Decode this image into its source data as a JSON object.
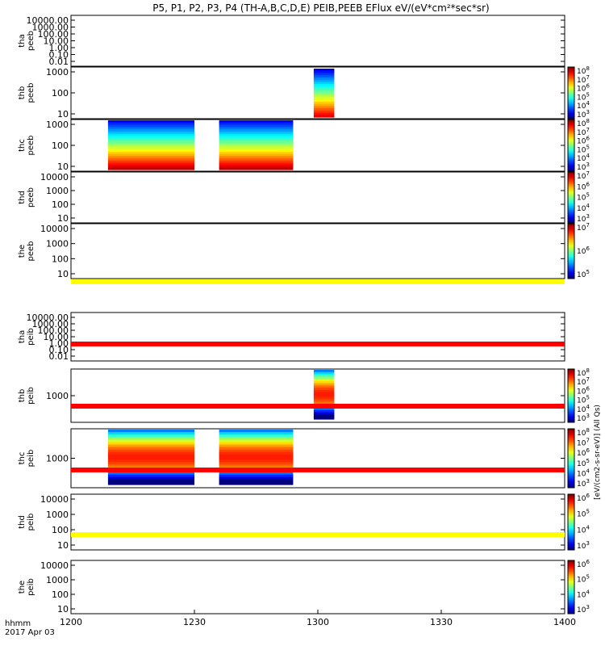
{
  "title": "P5, P1, P2, P3, P4 (TH-A,B,C,D,E) PEIB,PEEB EFlux eV/(eV*cm²*sec*sr)",
  "footer": {
    "line1": "hhmm",
    "line2": "2017 Apr 03"
  },
  "x_ticks": [
    "1200",
    "1230",
    "1300",
    "1330",
    "1400"
  ],
  "side_label": "[eV/(cm2-s-sr-eV)] (All Qs)",
  "colors": {
    "axis": "#000000",
    "marker_yellow": "#ffff00",
    "marker_red": "#ff0000"
  },
  "chart_data": {
    "type": "heatmap",
    "x_range": [
      "12:00",
      "14:00"
    ],
    "x_unit": "hhmm",
    "date": "2017 Apr 03",
    "colormap": "rainbow",
    "panels": [
      {
        "probe": "tha",
        "instrument": "peeb",
        "y_ticks": [
          "10000.00",
          "1000.00",
          "100.00",
          "10.00",
          "1.00",
          "0.10",
          "0.01"
        ],
        "colorbar": false,
        "data_blocks": []
      },
      {
        "probe": "thb",
        "instrument": "peeb",
        "y_ticks": [
          "1000",
          "100",
          "10"
        ],
        "colorbar": true,
        "cbar_ticks": [
          "10^8",
          "10^7",
          "10^6",
          "10^5",
          "10^4",
          "10^3"
        ],
        "data_blocks": [
          {
            "start": "12:59",
            "end": "13:04"
          }
        ]
      },
      {
        "probe": "thc",
        "instrument": "peeb",
        "y_ticks": [
          "1000",
          "100",
          "10"
        ],
        "colorbar": true,
        "cbar_ticks": [
          "10^8",
          "10^7",
          "10^6",
          "10^5",
          "10^4",
          "10^3"
        ],
        "data_blocks": [
          {
            "start": "12:09",
            "end": "12:30"
          },
          {
            "start": "12:36",
            "end": "12:54"
          }
        ]
      },
      {
        "probe": "thd",
        "instrument": "peeb",
        "y_ticks": [
          "10000",
          "1000",
          "100",
          "10"
        ],
        "colorbar": true,
        "cbar_ticks": [
          "10^7",
          "10^6",
          "10^5",
          "10^4",
          "10^3"
        ],
        "data_blocks": [],
        "marker_bar": "yellow"
      },
      {
        "probe": "the",
        "instrument": "peeb",
        "y_ticks": [
          "10000",
          "1000",
          "100",
          "10"
        ],
        "colorbar": true,
        "cbar_ticks": [
          "10^7",
          "10^6",
          "10^5"
        ],
        "data_blocks": []
      },
      {
        "probe": "tha",
        "instrument": "peib",
        "y_ticks": [
          "10000.00",
          "1000.00",
          "100.00",
          "10.00",
          "1.00",
          "0.10",
          "0.01"
        ],
        "colorbar": false,
        "data_blocks": [],
        "marker_bar": "red"
      },
      {
        "probe": "thb",
        "instrument": "peib",
        "y_ticks": [
          "1000"
        ],
        "colorbar": true,
        "cbar_ticks": [
          "10^8",
          "10^7",
          "10^6",
          "10^5",
          "10^4",
          "10^3"
        ],
        "data_blocks": [
          {
            "start": "12:59",
            "end": "13:04"
          }
        ],
        "marker_bar": "red"
      },
      {
        "probe": "thc",
        "instrument": "peib",
        "y_ticks": [
          "1000"
        ],
        "colorbar": true,
        "cbar_ticks": [
          "10^8",
          "10^7",
          "10^6",
          "10^5",
          "10^4",
          "10^3"
        ],
        "data_blocks": [
          {
            "start": "12:09",
            "end": "12:30"
          },
          {
            "start": "12:36",
            "end": "12:54"
          }
        ],
        "marker_bar": "red"
      },
      {
        "probe": "thd",
        "instrument": "peib",
        "y_ticks": [
          "10000",
          "1000",
          "100",
          "10"
        ],
        "colorbar": true,
        "cbar_ticks": [
          "10^6",
          "10^5",
          "10^4",
          "10^3"
        ],
        "data_blocks": [],
        "marker_bar": "yellow"
      },
      {
        "probe": "the",
        "instrument": "peib",
        "y_ticks": [
          "10000",
          "1000",
          "100",
          "10"
        ],
        "colorbar": true,
        "cbar_ticks": [
          "10^6",
          "10^5",
          "10^4",
          "10^3"
        ],
        "data_blocks": []
      }
    ]
  }
}
